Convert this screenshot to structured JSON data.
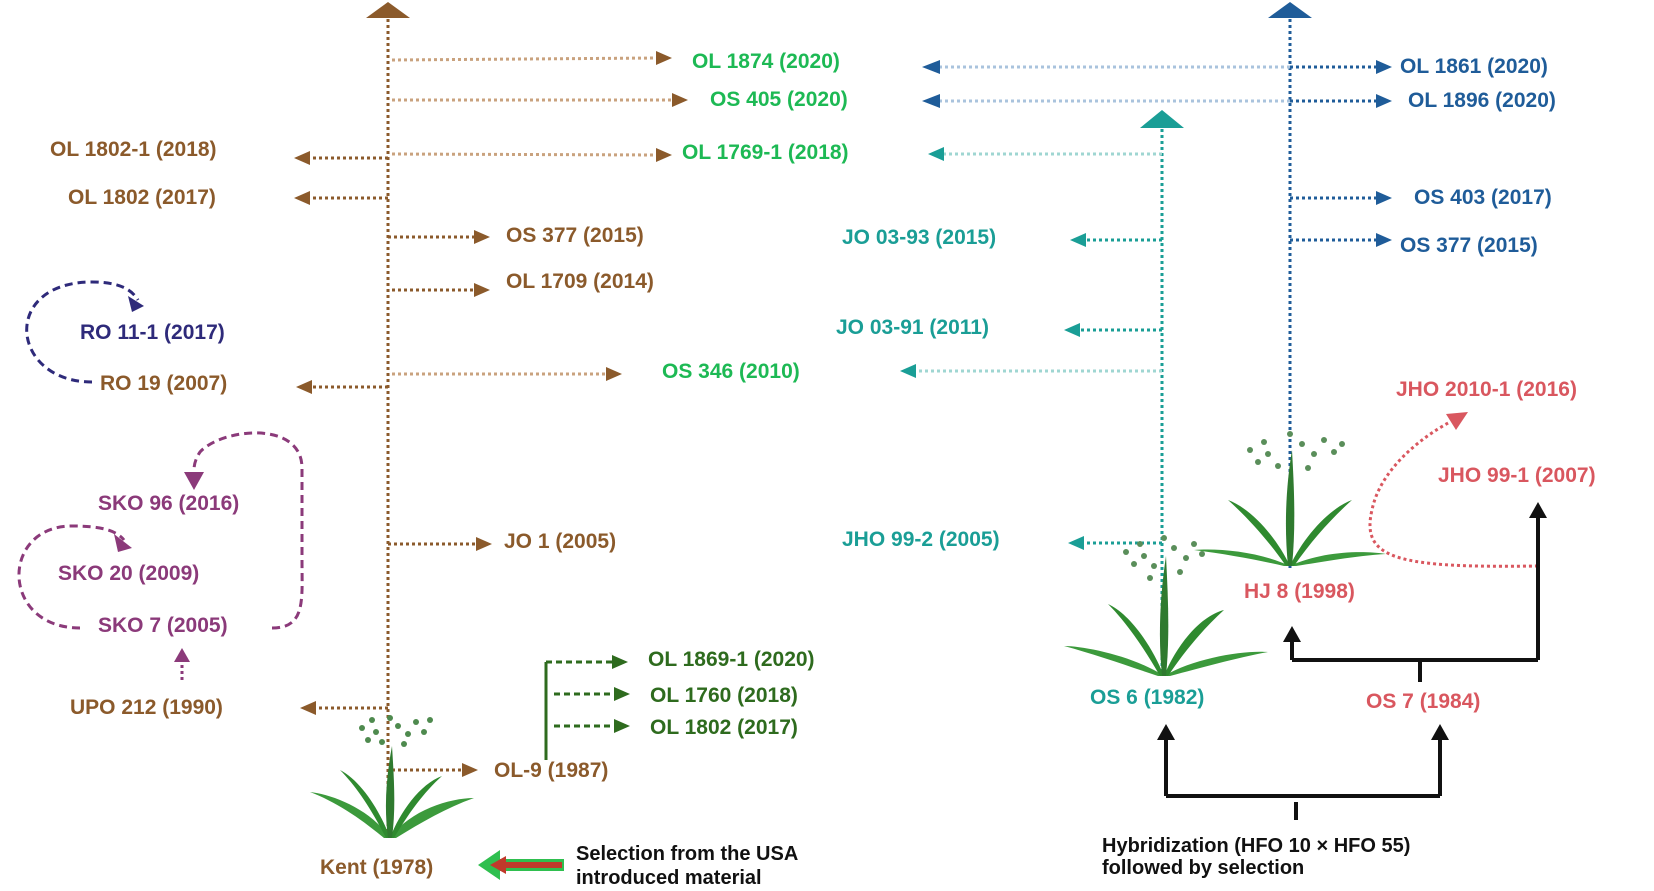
{
  "colors": {
    "brown": "#8B5A2B",
    "brown_light": "#C9A27E",
    "green": "#1DB954",
    "teal": "#1A9E96",
    "teal_light": "#9FD6D2",
    "blue": "#1F5C99",
    "blue_light": "#A9C3DD",
    "dark_green": "#2E6B1E",
    "purple": "#8B3A7A",
    "indigo": "#2E2A7A",
    "red": "#D9575F",
    "black": "#111111"
  },
  "icons": [
    "oat-plant-icon",
    "arrow-head-icon"
  ],
  "labels": {
    "kent": "Kent (1978)",
    "ol9": "OL-9 (1987)",
    "ol1869_1": "OL 1869-1 (2020)",
    "ol1760": "OL 1760 (2018)",
    "ol1802_dg": "OL 1802 (2017)",
    "upo212": "UPO 212 (1990)",
    "jo1": "JO 1 (2005)",
    "sko7": "SKO 7 (2005)",
    "sko20": "SKO 20 (2009)",
    "sko96": "SKO 96 (2016)",
    "ro19": "RO 19 (2007)",
    "ro11_1": "RO 11-1 (2017)",
    "os346": "OS 346 (2010)",
    "ol1709": "OL 1709 (2014)",
    "os377_brown": "OS 377 (2015)",
    "ol1802": "OL 1802 (2017)",
    "ol1802_1": "OL 1802-1 (2018)",
    "ol1769_1": "OL 1769-1 (2018)",
    "os405": "OS 405 (2020)",
    "ol1874": "OL 1874 (2020)",
    "jo03_93": "JO 03-93 (2015)",
    "jo03_91": "JO 03-91 (2011)",
    "jho99_2": "JHO 99-2 (2005)",
    "os6": "OS 6 (1982)",
    "os7": "OS 7 (1984)",
    "hj8": "HJ 8 (1998)",
    "jho99_1": "JHO 99-1 (2007)",
    "jho2010_1": "JHO 2010-1 (2016)",
    "ol1861": "OL 1861 (2020)",
    "ol1896": "OL 1896 (2020)",
    "os403": "OS 403 (2017)",
    "os377_blue": "OS 377 (2015)"
  },
  "notes": {
    "selection_line1": "Selection from the  USA",
    "selection_line2": "introduced material",
    "hybrid_line1": "Hybridization (HFO 10 × HFO 55)",
    "hybrid_line2": "followed by selection"
  }
}
